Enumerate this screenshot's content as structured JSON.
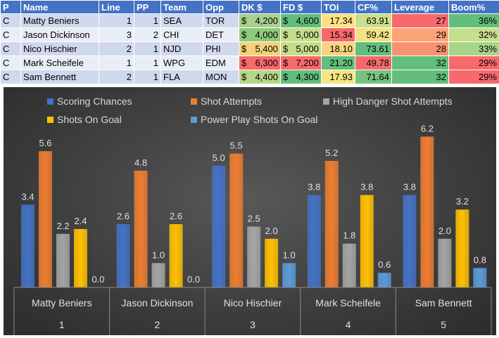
{
  "table": {
    "headers": [
      "P",
      "Name",
      "Line",
      "PP",
      "Team",
      "Opp",
      "DK $",
      "FD $",
      "TOI",
      "CF%",
      "Leverage",
      "Boom%"
    ],
    "rows": [
      {
        "pos": "C",
        "name": "Matty Beniers",
        "line": "1",
        "pp": "1",
        "team": "SEA",
        "opp": "TOR",
        "dk_cur": "$",
        "dk": "4,200",
        "fd_cur": "$",
        "fd": "4,600",
        "toi": "17.34",
        "cf": "63.91",
        "leverage": "27",
        "boom": "36%"
      },
      {
        "pos": "C",
        "name": "Jason Dickinson",
        "line": "3",
        "pp": "2",
        "team": "CHI",
        "opp": "DET",
        "dk_cur": "$",
        "dk": "4,000",
        "fd_cur": "$",
        "fd": "5,000",
        "toi": "15.34",
        "cf": "59.42",
        "leverage": "29",
        "boom": "32%"
      },
      {
        "pos": "C",
        "name": "Nico Hischier",
        "line": "2",
        "pp": "1",
        "team": "NJD",
        "opp": "PHI",
        "dk_cur": "$",
        "dk": "5,400",
        "fd_cur": "$",
        "fd": "5,000",
        "toi": "18.10",
        "cf": "73.61",
        "leverage": "28",
        "boom": "33%"
      },
      {
        "pos": "C",
        "name": "Mark Scheifele",
        "line": "1",
        "pp": "1",
        "team": "WPG",
        "opp": "EDM",
        "dk_cur": "$",
        "dk": "6,300",
        "fd_cur": "$",
        "fd": "7,200",
        "toi": "21.20",
        "cf": "49.78",
        "leverage": "32",
        "boom": "29%"
      },
      {
        "pos": "C",
        "name": "Sam Bennett",
        "line": "2",
        "pp": "1",
        "team": "FLA",
        "opp": "MON",
        "dk_cur": "$",
        "dk": "4,400",
        "fd_cur": "$",
        "fd": "4,300",
        "toi": "17.93",
        "cf": "71.64",
        "leverage": "32",
        "boom": "29%"
      }
    ],
    "cell_colors": {
      "dk": [
        "#a9d08e",
        "#8fc97c",
        "#f4d27a",
        "#f8696b",
        "#b6d688"
      ],
      "fd": [
        "#63be7b",
        "#c5dd8a",
        "#c5dd8a",
        "#f8696b",
        "#63be7b"
      ],
      "toi": [
        "#fee282",
        "#f8696b",
        "#fbd27f",
        "#63be7b",
        "#f6e683"
      ],
      "cf": [
        "#c9df8a",
        "#f3e382",
        "#63be7b",
        "#f8696b",
        "#76c37d"
      ],
      "leverage": [
        "#f8696b",
        "#fca277",
        "#f99272",
        "#63be7b",
        "#63be7b"
      ],
      "boom": [
        "#63be7b",
        "#c6df8a",
        "#a7d488",
        "#f8696b",
        "#f8696b"
      ]
    }
  },
  "chart_data": {
    "type": "bar",
    "title": "",
    "xlabel": "",
    "ylabel": "",
    "ylim": [
      0,
      6.5
    ],
    "grid": false,
    "legend_position": "top",
    "categories": [
      {
        "name": "Matty Beniers",
        "index": "1"
      },
      {
        "name": "Jason Dickinson",
        "index": "2"
      },
      {
        "name": "Nico Hischier",
        "index": "3"
      },
      {
        "name": "Mark Scheifele",
        "index": "4"
      },
      {
        "name": "Sam Bennett",
        "index": "5"
      }
    ],
    "series": [
      {
        "name": "Scoring Chances",
        "color": "#4472c4",
        "values": [
          3.4,
          2.6,
          5.0,
          3.8,
          3.8
        ]
      },
      {
        "name": "Shot Attempts",
        "color": "#ed7d31",
        "values": [
          5.6,
          4.8,
          5.5,
          5.2,
          6.2
        ]
      },
      {
        "name": "High Danger Shot Attempts",
        "color": "#a5a5a5",
        "values": [
          2.2,
          1.0,
          2.5,
          1.8,
          2.0
        ]
      },
      {
        "name": "Shots On Goal",
        "color": "#ffc000",
        "values": [
          2.4,
          2.6,
          2.0,
          3.8,
          3.2
        ]
      },
      {
        "name": "Power Play Shots On Goal",
        "color": "#5b9bd5",
        "values": [
          0.0,
          0.0,
          1.0,
          0.6,
          0.8
        ]
      }
    ]
  }
}
